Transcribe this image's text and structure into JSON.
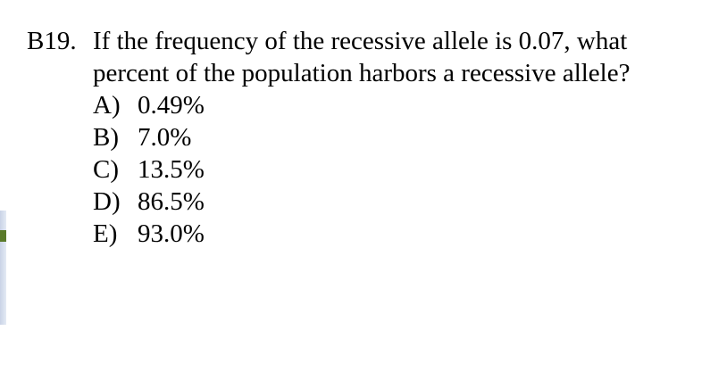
{
  "question": {
    "number": "B19.",
    "text_lines": [
      "If the frequency of the recessive allele is 0.07, what",
      "percent of the population harbors a recessive allele?"
    ],
    "options": [
      {
        "letter": "A)",
        "text": "0.49%"
      },
      {
        "letter": "B)",
        "text": "7.0%"
      },
      {
        "letter": "C)",
        "text": "13.5%"
      },
      {
        "letter": "D)",
        "text": "86.5%"
      },
      {
        "letter": "E)",
        "text": "93.0%"
      }
    ]
  }
}
